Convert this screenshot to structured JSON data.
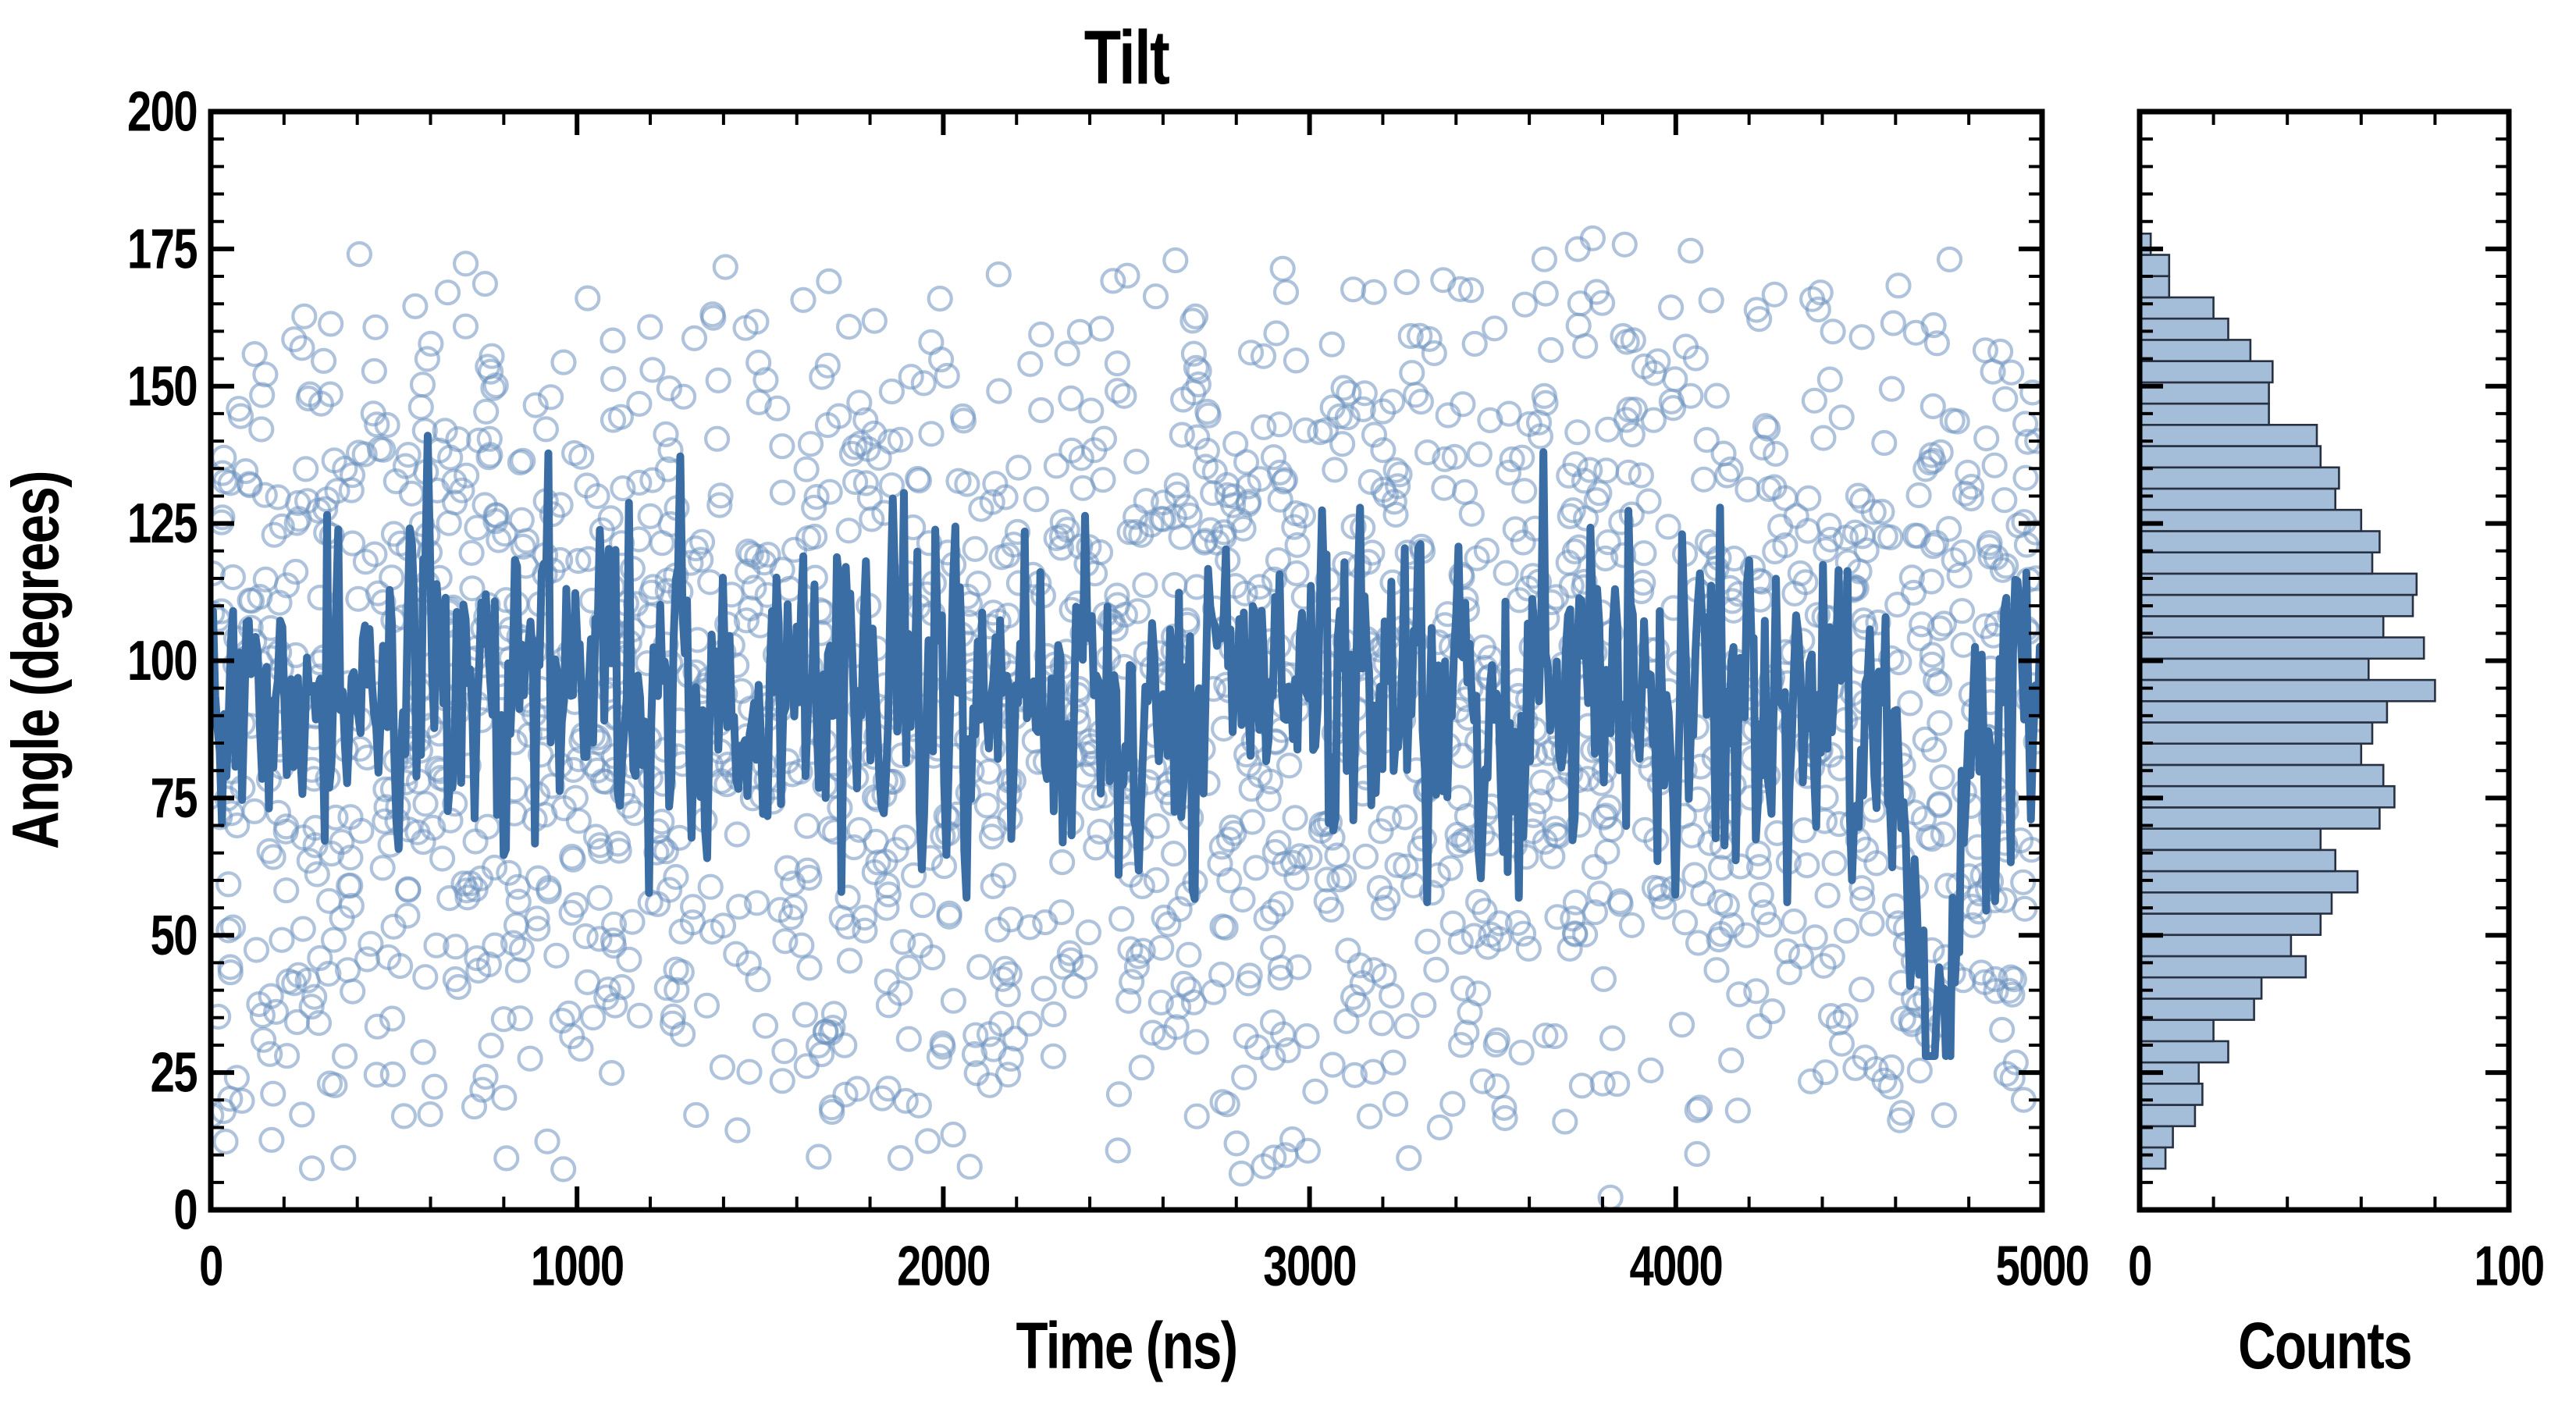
{
  "labels": {
    "title": "Tilt",
    "x_main": "Time (ns)",
    "y_main": "Angle (degrees)",
    "x_hist": "Counts"
  },
  "colors": {
    "background": "#ffffff",
    "axis": "#000000",
    "text": "#000000",
    "scatter_ring": "#6d94c0",
    "line": "#3a6da4",
    "hist_fill": "#a4bdd8",
    "hist_edge": "#273142"
  },
  "chart_data": [
    {
      "type": "scatter",
      "panel": "main",
      "title": "Tilt",
      "xlabel": "Time (ns)",
      "ylabel": "Angle (degrees)",
      "xlim": [
        0,
        5000
      ],
      "ylim": [
        0,
        200
      ],
      "x_major_ticks": [
        0,
        1000,
        2000,
        3000,
        4000,
        5000
      ],
      "x_tick_labels": [
        "0",
        "1000",
        "2000",
        "3000",
        "4000",
        "5000"
      ],
      "x_minor_step": 200,
      "y_major_ticks": [
        0,
        25,
        50,
        75,
        100,
        125,
        150,
        175,
        200
      ],
      "y_tick_labels": [
        "0",
        "25",
        "50",
        "75",
        "100",
        "125",
        "150",
        "175",
        "200"
      ],
      "y_minor_step": 5,
      "grid": false,
      "legend": "none",
      "scatter": {
        "description": "individual tilt-angle samples, open circles",
        "n": 1935,
        "seed": 987654321,
        "x_distribution": "uniform on [0,5000] ns",
        "angle_distribution": "sin-weighted: theta = acos(1-2u) in degrees (range ~5-178)",
        "marker": "open-circle",
        "marker_radius_px": 14.5,
        "marker_stroke_px": 4.2,
        "opacity": 0.55
      },
      "line": {
        "description": "instantaneous mean tilt angle trace",
        "n": 820,
        "seed": 24681357,
        "start_deg": 118,
        "mean_deg": 94,
        "sigma_deg": 13.5,
        "ar1": 0.35,
        "clamp_deg": [
          56,
          141
        ],
        "dip": {
          "t_ns": 4715,
          "min_deg": 30,
          "width_ns": 55,
          "depth_deg": 64
        },
        "stroke_px": 10
      }
    },
    {
      "type": "bar",
      "panel": "histogram",
      "orientation": "horizontal",
      "xlabel": "Counts",
      "xlim": [
        0,
        100
      ],
      "x_major_ticks": [
        0,
        100
      ],
      "x_tick_labels": [
        "0",
        "100"
      ],
      "x_minor_step": 20,
      "ylim": [
        0,
        200
      ],
      "shares_y_with_main": true,
      "bin_start_deg": 7.5,
      "bin_width_deg": 3.87,
      "counts_bottom_to_top": [
        7,
        9,
        15,
        17,
        16,
        24,
        20,
        31,
        33,
        45,
        41,
        49,
        52,
        59,
        53,
        49,
        65,
        69,
        66,
        60,
        63,
        67,
        80,
        62,
        77,
        66,
        74,
        75,
        63,
        65,
        60,
        53,
        54,
        49,
        48,
        35,
        35,
        36,
        30,
        24,
        20,
        8,
        8,
        3
      ]
    }
  ]
}
